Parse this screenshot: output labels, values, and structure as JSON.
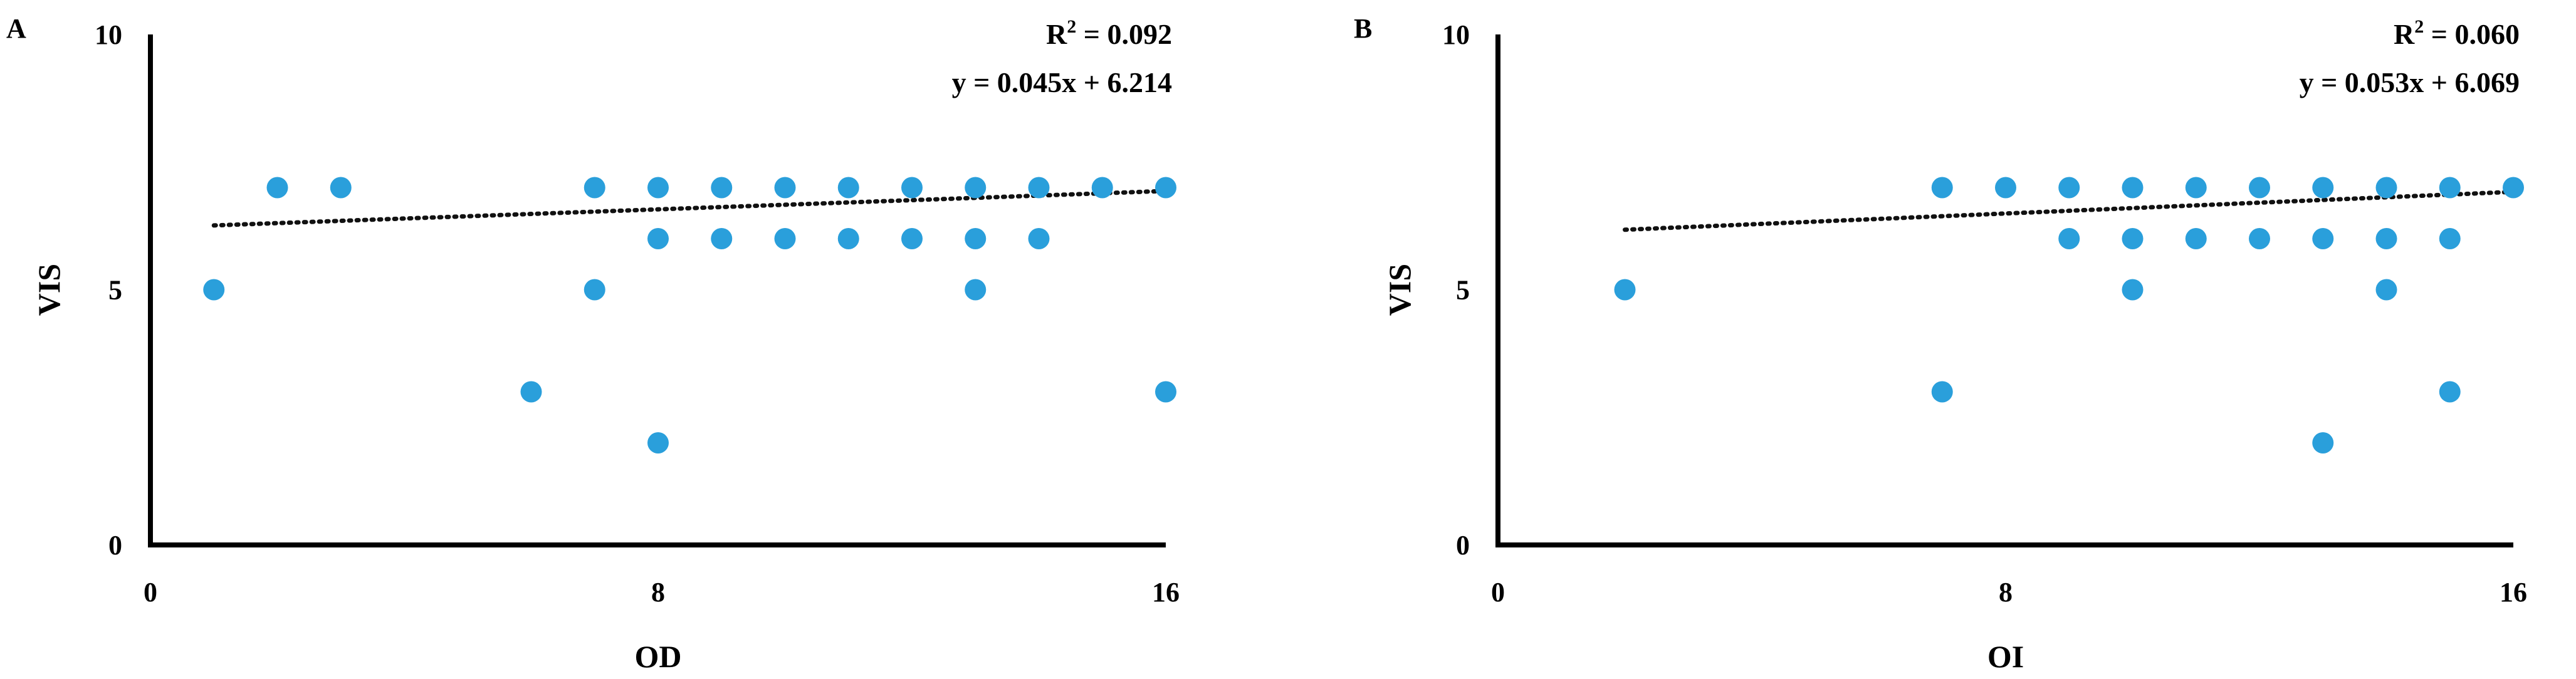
{
  "chart_data": [
    {
      "type": "scatter",
      "panel": "A",
      "xlabel": "OD",
      "ylabel": "VIS",
      "xlim": [
        0,
        16
      ],
      "ylim": [
        0,
        10
      ],
      "x_ticks": [
        0,
        8,
        16
      ],
      "y_ticks": [
        0,
        5,
        10
      ],
      "point_color": "#2a9fdb",
      "trendline": {
        "style": "dotted",
        "slope": 0.045,
        "intercept": 6.214
      },
      "r2_label": "R",
      "r2_sup": "2",
      "r2_value": " = 0.092",
      "equation": "y = 0.045x + 6.214",
      "points": [
        [
          1,
          5
        ],
        [
          2,
          7
        ],
        [
          3,
          7
        ],
        [
          6,
          3
        ],
        [
          7,
          7
        ],
        [
          7,
          5
        ],
        [
          8,
          7
        ],
        [
          8,
          6
        ],
        [
          8,
          2
        ],
        [
          9,
          7
        ],
        [
          9,
          6
        ],
        [
          10,
          7
        ],
        [
          10,
          6
        ],
        [
          11,
          7
        ],
        [
          11,
          6
        ],
        [
          12,
          7
        ],
        [
          12,
          6
        ],
        [
          13,
          7
        ],
        [
          13,
          6
        ],
        [
          13,
          5
        ],
        [
          14,
          7
        ],
        [
          14,
          6
        ],
        [
          15,
          7
        ],
        [
          16,
          7
        ],
        [
          16,
          3
        ]
      ]
    },
    {
      "type": "scatter",
      "panel": "B",
      "xlabel": "OI",
      "ylabel": "VIS",
      "xlim": [
        0,
        16
      ],
      "ylim": [
        0,
        10
      ],
      "x_ticks": [
        0,
        8,
        16
      ],
      "y_ticks": [
        0,
        5,
        10
      ],
      "point_color": "#2a9fdb",
      "trendline": {
        "style": "dotted",
        "slope": 0.053,
        "intercept": 6.069
      },
      "r2_label": "R",
      "r2_sup": "2",
      "r2_value": " = 0.060",
      "equation": "y = 0.053x + 6.069",
      "points": [
        [
          2,
          5
        ],
        [
          7,
          7
        ],
        [
          7,
          3
        ],
        [
          8,
          7
        ],
        [
          9,
          7
        ],
        [
          9,
          6
        ],
        [
          10,
          7
        ],
        [
          10,
          6
        ],
        [
          10,
          5
        ],
        [
          11,
          7
        ],
        [
          11,
          6
        ],
        [
          12,
          7
        ],
        [
          12,
          6
        ],
        [
          13,
          7
        ],
        [
          13,
          6
        ],
        [
          13,
          2
        ],
        [
          14,
          7
        ],
        [
          14,
          6
        ],
        [
          14,
          5
        ],
        [
          15,
          7
        ],
        [
          15,
          6
        ],
        [
          15,
          3
        ],
        [
          16,
          7
        ]
      ]
    }
  ]
}
